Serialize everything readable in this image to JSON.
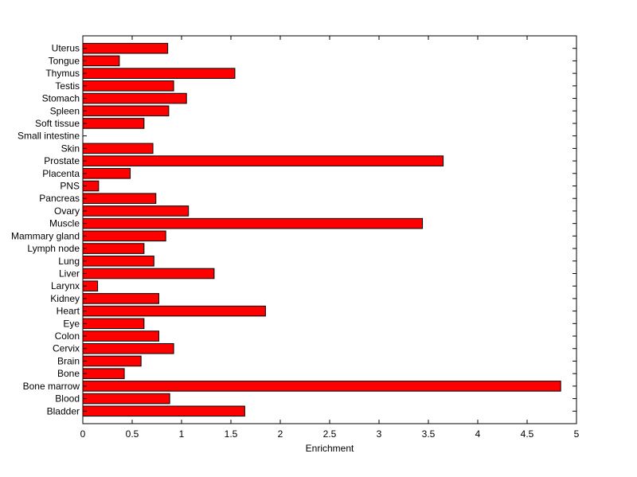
{
  "chart_data": {
    "type": "bar",
    "orientation": "horizontal",
    "xlabel": "Enrichment",
    "xlim": [
      0,
      5
    ],
    "xticks": [
      "0",
      "0.5",
      "1",
      "1.5",
      "2",
      "2.5",
      "3",
      "3.5",
      "4",
      "4.5",
      "5"
    ],
    "grid": false,
    "bar_color": "#ff0000",
    "bar_edge_color": "#000000",
    "categories": [
      "Bladder",
      "Blood",
      "Bone marrow",
      "Bone",
      "Brain",
      "Cervix",
      "Colon",
      "Eye",
      "Heart",
      "Kidney",
      "Larynx",
      "Liver",
      "Lung",
      "Lymph node",
      "Mammary gland",
      "Muscle",
      "Ovary",
      "Pancreas",
      "PNS",
      "Placenta",
      "Prostate",
      "Skin",
      "Small intestine",
      "Soft tissue",
      "Spleen",
      "Stomach",
      "Testis",
      "Thymus",
      "Tongue",
      "Uterus"
    ],
    "values": [
      1.64,
      0.88,
      4.84,
      0.42,
      0.59,
      0.92,
      0.77,
      0.62,
      1.85,
      0.77,
      0.15,
      1.33,
      0.72,
      0.62,
      0.84,
      3.44,
      1.07,
      0.74,
      0.16,
      0.48,
      3.65,
      0.71,
      0.0,
      0.62,
      0.87,
      1.05,
      0.92,
      1.54,
      0.37,
      0.86
    ]
  }
}
